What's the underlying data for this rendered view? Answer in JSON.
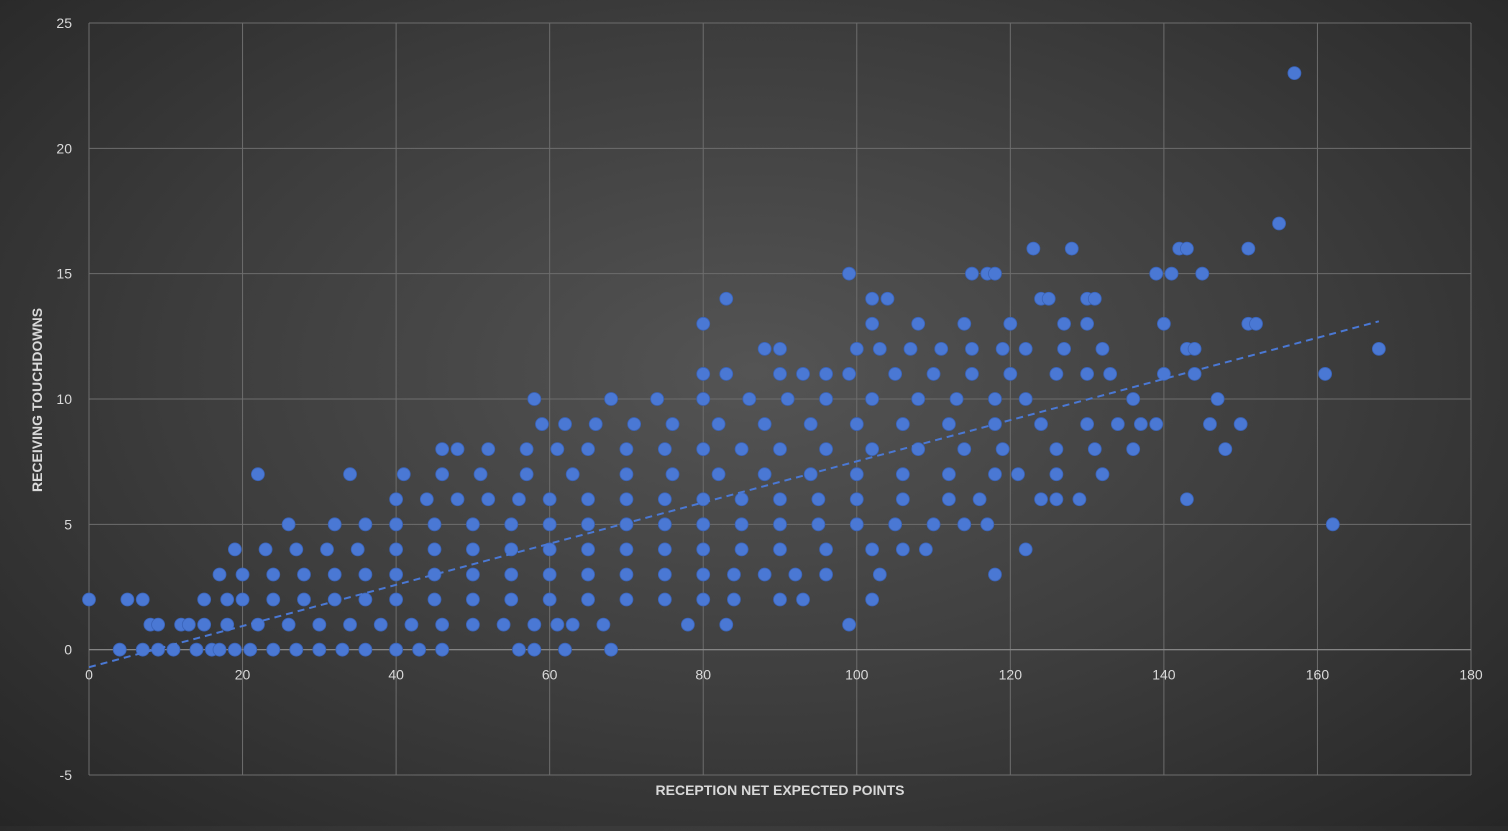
{
  "chart_data": {
    "type": "scatter",
    "title": "",
    "xlabel": "RECEPTION NET EXPECTED POINTS",
    "ylabel": "RECEIVING TOUCHDOWNS",
    "xlim": [
      0,
      180
    ],
    "ylim": [
      -5,
      25
    ],
    "xticks": [
      0,
      20,
      40,
      60,
      80,
      100,
      120,
      140,
      160,
      180
    ],
    "yticks": [
      -5,
      0,
      5,
      10,
      15,
      20,
      25
    ],
    "grid": true,
    "legend": "none",
    "marker_color": "#4a78d4",
    "trendline": {
      "type": "linear",
      "x": [
        0,
        168
      ],
      "y": [
        -0.7,
        13.1
      ],
      "style": "dashed",
      "color": "#4a78d4"
    },
    "series": [
      {
        "points": [
          [
            0,
            2
          ],
          [
            4,
            0
          ],
          [
            5,
            2
          ],
          [
            7,
            2
          ],
          [
            7,
            0
          ],
          [
            8,
            1
          ],
          [
            9,
            1
          ],
          [
            9,
            0
          ],
          [
            11,
            0
          ],
          [
            12,
            1
          ],
          [
            14,
            0
          ],
          [
            16,
            0
          ],
          [
            17,
            0
          ],
          [
            19,
            0
          ],
          [
            21,
            0
          ],
          [
            24,
            0
          ],
          [
            27,
            0
          ],
          [
            30,
            0
          ],
          [
            33,
            0
          ],
          [
            36,
            0
          ],
          [
            40,
            0
          ],
          [
            43,
            0
          ],
          [
            46,
            0
          ],
          [
            56,
            0
          ],
          [
            58,
            0
          ],
          [
            62,
            0
          ],
          [
            68,
            0
          ],
          [
            13,
            1
          ],
          [
            15,
            1
          ],
          [
            18,
            1
          ],
          [
            22,
            1
          ],
          [
            26,
            1
          ],
          [
            30,
            1
          ],
          [
            34,
            1
          ],
          [
            38,
            1
          ],
          [
            42,
            1
          ],
          [
            46,
            1
          ],
          [
            50,
            1
          ],
          [
            54,
            1
          ],
          [
            58,
            1
          ],
          [
            61,
            1
          ],
          [
            63,
            1
          ],
          [
            67,
            1
          ],
          [
            78,
            1
          ],
          [
            83,
            1
          ],
          [
            99,
            1
          ],
          [
            15,
            2
          ],
          [
            18,
            2
          ],
          [
            20,
            2
          ],
          [
            24,
            2
          ],
          [
            28,
            2
          ],
          [
            32,
            2
          ],
          [
            36,
            2
          ],
          [
            40,
            2
          ],
          [
            45,
            2
          ],
          [
            50,
            2
          ],
          [
            55,
            2
          ],
          [
            60,
            2
          ],
          [
            65,
            2
          ],
          [
            70,
            2
          ],
          [
            75,
            2
          ],
          [
            80,
            2
          ],
          [
            84,
            2
          ],
          [
            90,
            2
          ],
          [
            93,
            2
          ],
          [
            102,
            2
          ],
          [
            17,
            3
          ],
          [
            20,
            3
          ],
          [
            24,
            3
          ],
          [
            28,
            3
          ],
          [
            32,
            3
          ],
          [
            36,
            3
          ],
          [
            40,
            3
          ],
          [
            45,
            3
          ],
          [
            50,
            3
          ],
          [
            55,
            3
          ],
          [
            60,
            3
          ],
          [
            65,
            3
          ],
          [
            70,
            3
          ],
          [
            75,
            3
          ],
          [
            80,
            3
          ],
          [
            84,
            3
          ],
          [
            88,
            3
          ],
          [
            92,
            3
          ],
          [
            96,
            3
          ],
          [
            103,
            3
          ],
          [
            118,
            3
          ],
          [
            19,
            4
          ],
          [
            23,
            4
          ],
          [
            27,
            4
          ],
          [
            31,
            4
          ],
          [
            35,
            4
          ],
          [
            40,
            4
          ],
          [
            45,
            4
          ],
          [
            50,
            4
          ],
          [
            55,
            4
          ],
          [
            60,
            4
          ],
          [
            65,
            4
          ],
          [
            70,
            4
          ],
          [
            75,
            4
          ],
          [
            80,
            4
          ],
          [
            85,
            4
          ],
          [
            90,
            4
          ],
          [
            96,
            4
          ],
          [
            102,
            4
          ],
          [
            106,
            4
          ],
          [
            109,
            4
          ],
          [
            122,
            4
          ],
          [
            26,
            5
          ],
          [
            32,
            5
          ],
          [
            36,
            5
          ],
          [
            40,
            5
          ],
          [
            45,
            5
          ],
          [
            50,
            5
          ],
          [
            55,
            5
          ],
          [
            60,
            5
          ],
          [
            65,
            5
          ],
          [
            70,
            5
          ],
          [
            75,
            5
          ],
          [
            80,
            5
          ],
          [
            85,
            5
          ],
          [
            90,
            5
          ],
          [
            95,
            5
          ],
          [
            100,
            5
          ],
          [
            105,
            5
          ],
          [
            110,
            5
          ],
          [
            114,
            5
          ],
          [
            117,
            5
          ],
          [
            162,
            5
          ],
          [
            40,
            6
          ],
          [
            44,
            6
          ],
          [
            48,
            6
          ],
          [
            52,
            6
          ],
          [
            56,
            6
          ],
          [
            60,
            6
          ],
          [
            65,
            6
          ],
          [
            70,
            6
          ],
          [
            75,
            6
          ],
          [
            80,
            6
          ],
          [
            85,
            6
          ],
          [
            90,
            6
          ],
          [
            95,
            6
          ],
          [
            100,
            6
          ],
          [
            106,
            6
          ],
          [
            112,
            6
          ],
          [
            116,
            6
          ],
          [
            124,
            6
          ],
          [
            126,
            6
          ],
          [
            129,
            6
          ],
          [
            143,
            6
          ],
          [
            22,
            7
          ],
          [
            34,
            7
          ],
          [
            41,
            7
          ],
          [
            46,
            7
          ],
          [
            51,
            7
          ],
          [
            57,
            7
          ],
          [
            63,
            7
          ],
          [
            70,
            7
          ],
          [
            76,
            7
          ],
          [
            82,
            7
          ],
          [
            88,
            7
          ],
          [
            94,
            7
          ],
          [
            100,
            7
          ],
          [
            106,
            7
          ],
          [
            112,
            7
          ],
          [
            118,
            7
          ],
          [
            121,
            7
          ],
          [
            126,
            7
          ],
          [
            132,
            7
          ],
          [
            46,
            8
          ],
          [
            48,
            8
          ],
          [
            52,
            8
          ],
          [
            57,
            8
          ],
          [
            61,
            8
          ],
          [
            65,
            8
          ],
          [
            70,
            8
          ],
          [
            75,
            8
          ],
          [
            80,
            8
          ],
          [
            85,
            8
          ],
          [
            90,
            8
          ],
          [
            96,
            8
          ],
          [
            102,
            8
          ],
          [
            108,
            8
          ],
          [
            114,
            8
          ],
          [
            119,
            8
          ],
          [
            126,
            8
          ],
          [
            131,
            8
          ],
          [
            136,
            8
          ],
          [
            148,
            8
          ],
          [
            59,
            9
          ],
          [
            62,
            9
          ],
          [
            66,
            9
          ],
          [
            71,
            9
          ],
          [
            76,
            9
          ],
          [
            82,
            9
          ],
          [
            88,
            9
          ],
          [
            94,
            9
          ],
          [
            100,
            9
          ],
          [
            106,
            9
          ],
          [
            112,
            9
          ],
          [
            118,
            9
          ],
          [
            124,
            9
          ],
          [
            130,
            9
          ],
          [
            134,
            9
          ],
          [
            137,
            9
          ],
          [
            139,
            9
          ],
          [
            146,
            9
          ],
          [
            150,
            9
          ],
          [
            58,
            10
          ],
          [
            68,
            10
          ],
          [
            74,
            10
          ],
          [
            80,
            10
          ],
          [
            86,
            10
          ],
          [
            91,
            10
          ],
          [
            96,
            10
          ],
          [
            102,
            10
          ],
          [
            108,
            10
          ],
          [
            113,
            10
          ],
          [
            118,
            10
          ],
          [
            122,
            10
          ],
          [
            136,
            10
          ],
          [
            147,
            10
          ],
          [
            80,
            11
          ],
          [
            83,
            11
          ],
          [
            90,
            11
          ],
          [
            93,
            11
          ],
          [
            96,
            11
          ],
          [
            99,
            11
          ],
          [
            105,
            11
          ],
          [
            110,
            11
          ],
          [
            115,
            11
          ],
          [
            120,
            11
          ],
          [
            126,
            11
          ],
          [
            130,
            11
          ],
          [
            133,
            11
          ],
          [
            140,
            11
          ],
          [
            144,
            11
          ],
          [
            161,
            11
          ],
          [
            88,
            12
          ],
          [
            90,
            12
          ],
          [
            100,
            12
          ],
          [
            103,
            12
          ],
          [
            107,
            12
          ],
          [
            111,
            12
          ],
          [
            115,
            12
          ],
          [
            119,
            12
          ],
          [
            122,
            12
          ],
          [
            127,
            12
          ],
          [
            132,
            12
          ],
          [
            143,
            12
          ],
          [
            144,
            12
          ],
          [
            168,
            12
          ],
          [
            80,
            13
          ],
          [
            102,
            13
          ],
          [
            108,
            13
          ],
          [
            114,
            13
          ],
          [
            120,
            13
          ],
          [
            127,
            13
          ],
          [
            130,
            13
          ],
          [
            140,
            13
          ],
          [
            151,
            13
          ],
          [
            152,
            13
          ],
          [
            83,
            14
          ],
          [
            102,
            14
          ],
          [
            104,
            14
          ],
          [
            124,
            14
          ],
          [
            125,
            14
          ],
          [
            130,
            14
          ],
          [
            131,
            14
          ],
          [
            99,
            15
          ],
          [
            115,
            15
          ],
          [
            117,
            15
          ],
          [
            118,
            15
          ],
          [
            139,
            15
          ],
          [
            141,
            15
          ],
          [
            145,
            15
          ],
          [
            123,
            16
          ],
          [
            128,
            16
          ],
          [
            142,
            16
          ],
          [
            143,
            16
          ],
          [
            151,
            16
          ],
          [
            155,
            17
          ],
          [
            157,
            23
          ]
        ]
      }
    ]
  }
}
